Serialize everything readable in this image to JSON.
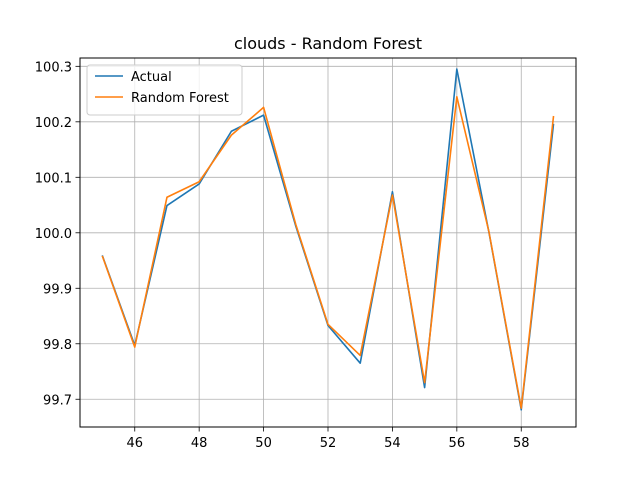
{
  "chart_data": {
    "type": "line",
    "title": "clouds - Random Forest",
    "xlabel": "",
    "ylabel": "",
    "xlim": [
      44.3,
      59.7
    ],
    "ylim": [
      99.65,
      100.315
    ],
    "grid": true,
    "legend_position": "top-left",
    "x_ticks": [
      46,
      48,
      50,
      52,
      54,
      56,
      58
    ],
    "x_tick_labels": [
      "46",
      "48",
      "50",
      "52",
      "54",
      "56",
      "58"
    ],
    "y_ticks": [
      99.7,
      99.8,
      99.9,
      100.0,
      100.1,
      100.2,
      100.3
    ],
    "y_tick_labels": [
      "99.7",
      "99.8",
      "99.9",
      "100.0",
      "100.1",
      "100.2",
      "100.3"
    ],
    "x": [
      45,
      46,
      47,
      48,
      49,
      50,
      51,
      52,
      53,
      54,
      55,
      56,
      57,
      58,
      59
    ],
    "series": [
      {
        "name": "Actual",
        "color": "#1f77b4",
        "values": [
          99.958,
          99.797,
          100.049,
          100.088,
          100.183,
          100.212,
          100.012,
          99.833,
          99.765,
          100.074,
          99.721,
          100.295,
          100.0,
          99.681,
          100.195
        ]
      },
      {
        "name": "Random Forest",
        "color": "#ff7f0e",
        "values": [
          99.957,
          99.794,
          100.064,
          100.092,
          100.176,
          100.226,
          100.015,
          99.835,
          99.779,
          100.068,
          99.73,
          100.245,
          100.001,
          99.684,
          100.209
        ]
      }
    ]
  }
}
